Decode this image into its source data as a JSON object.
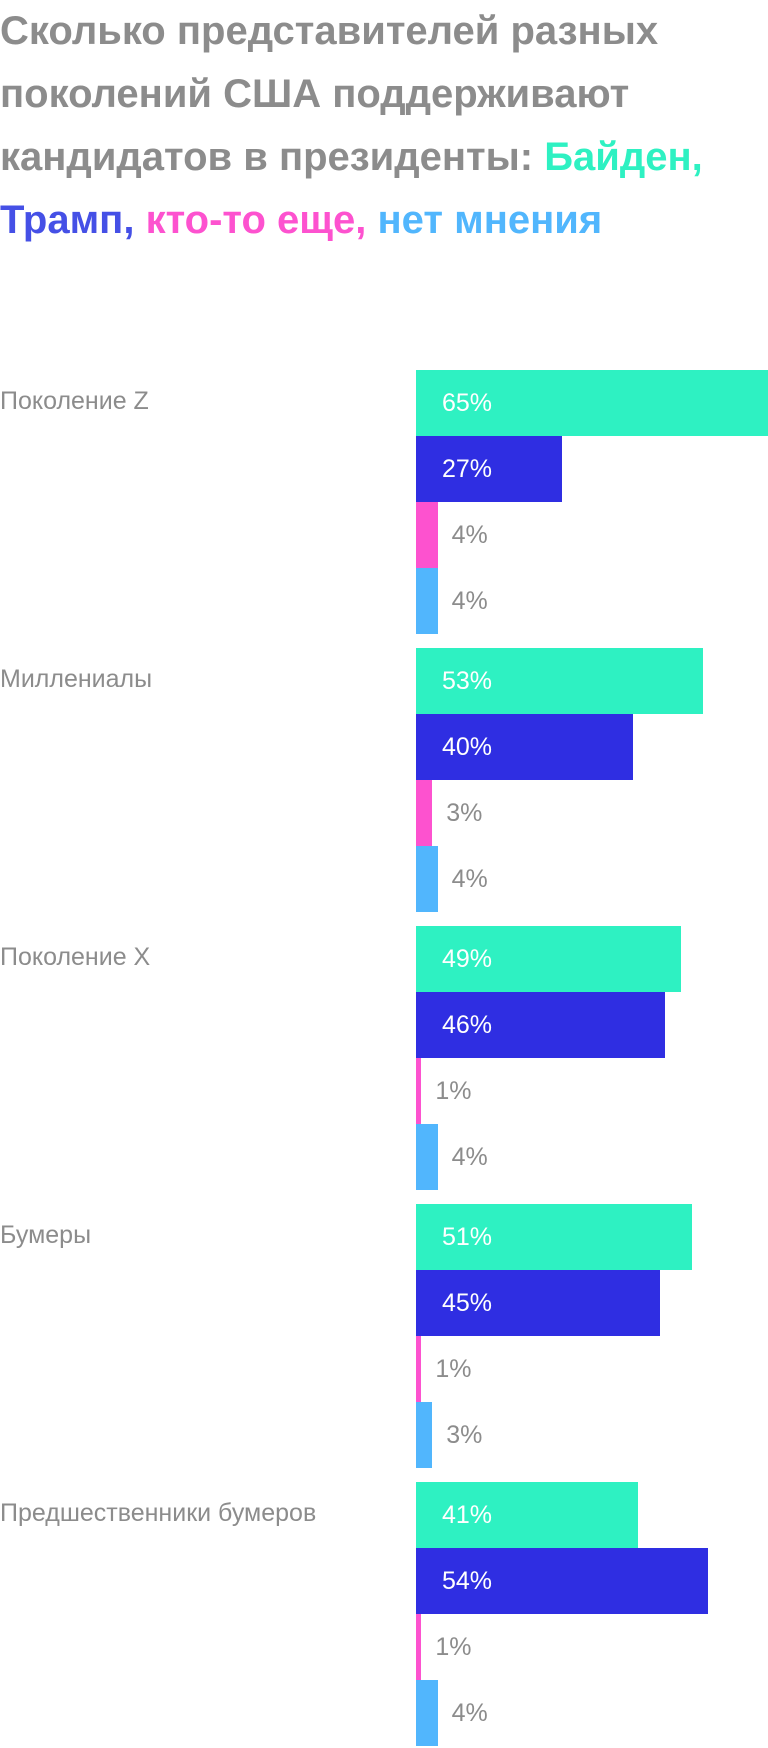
{
  "title": {
    "prefix": "Сколько представителей разных поколений США поддерживают кандидатов в президенты: ",
    "biden": "Байден,",
    "trump": "Трамп,",
    "other": "кто-то еще,",
    "none": "нет мнения"
  },
  "chart_data": {
    "type": "bar",
    "orientation": "horizontal",
    "unit": "%",
    "categories": [
      "Поколение Z",
      "Миллениалы",
      "Поколение X",
      "Бумеры",
      "Предшественники бумеров"
    ],
    "series": [
      {
        "name": "Байден",
        "color": "#2ef1c2",
        "values": [
          65,
          53,
          49,
          51,
          41
        ]
      },
      {
        "name": "Трамп",
        "color": "#2f2ee2",
        "values": [
          27,
          40,
          46,
          45,
          54
        ]
      },
      {
        "name": "кто-то еще",
        "color": "#fd52cf",
        "values": [
          4,
          3,
          1,
          1,
          1
        ]
      },
      {
        "name": "нет мнения",
        "color": "#51b6fd",
        "values": [
          4,
          4,
          4,
          3,
          4
        ]
      }
    ],
    "xlim": [
      0,
      65
    ],
    "grid": false,
    "legend": "title"
  }
}
